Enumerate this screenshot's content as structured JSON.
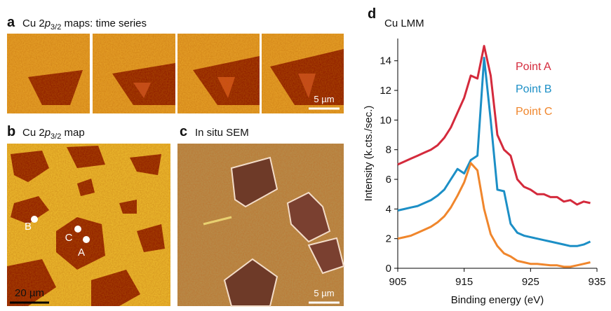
{
  "figure": {
    "panels": [
      {
        "label": "a",
        "title_parts": [
          "Cu 2",
          "p",
          "3/2",
          " maps: time series"
        ],
        "scale_bar": "5 µm"
      },
      {
        "label": "b",
        "title_parts": [
          "Cu 2",
          "p",
          "3/2",
          " map"
        ],
        "scale_bar": "20 µm",
        "points": [
          "A",
          "B",
          "C"
        ]
      },
      {
        "label": "c",
        "title": "In situ SEM",
        "scale_bar": "5 µm"
      }
    ]
  },
  "chart_data": {
    "type": "line",
    "panel_label": "d",
    "title": "Cu LMM",
    "xlabel": "Binding energy (eV)",
    "ylabel": "Intensity (k.cts./sec.)",
    "xlim": [
      905,
      935
    ],
    "xticks": [
      905,
      915,
      925,
      935
    ],
    "ylim": [
      0,
      15.5
    ],
    "yticks": [
      0,
      2,
      4,
      6,
      8,
      10,
      12,
      14
    ],
    "x": [
      905,
      906,
      907,
      908,
      909,
      910,
      911,
      912,
      913,
      914,
      915,
      916,
      917,
      918,
      919,
      920,
      921,
      922,
      923,
      924,
      925,
      926,
      927,
      928,
      929,
      930,
      931,
      932,
      933,
      934
    ],
    "series": [
      {
        "name": "Point A",
        "color": "#d42a3c",
        "values": [
          7.0,
          7.2,
          7.4,
          7.6,
          7.8,
          8.0,
          8.3,
          8.8,
          9.5,
          10.5,
          11.5,
          13.0,
          12.8,
          15.0,
          13.0,
          9.0,
          8.0,
          7.6,
          6.0,
          5.5,
          5.3,
          5.0,
          5.0,
          4.8,
          4.8,
          4.5,
          4.6,
          4.3,
          4.5,
          4.4
        ]
      },
      {
        "name": "Point B",
        "color": "#1c8fc6",
        "values": [
          3.9,
          4.0,
          4.1,
          4.2,
          4.4,
          4.6,
          4.9,
          5.3,
          6.0,
          6.7,
          6.4,
          7.3,
          7.6,
          14.2,
          10.0,
          5.3,
          5.2,
          3.0,
          2.4,
          2.2,
          2.1,
          2.0,
          1.9,
          1.8,
          1.7,
          1.6,
          1.5,
          1.5,
          1.6,
          1.8
        ]
      },
      {
        "name": "Point C",
        "color": "#f0862c",
        "values": [
          2.0,
          2.1,
          2.2,
          2.4,
          2.6,
          2.8,
          3.1,
          3.5,
          4.1,
          4.9,
          5.8,
          7.1,
          6.6,
          4.0,
          2.3,
          1.5,
          1.0,
          0.8,
          0.5,
          0.4,
          0.3,
          0.3,
          0.25,
          0.2,
          0.2,
          0.1,
          0.1,
          0.2,
          0.3,
          0.4
        ]
      }
    ]
  }
}
